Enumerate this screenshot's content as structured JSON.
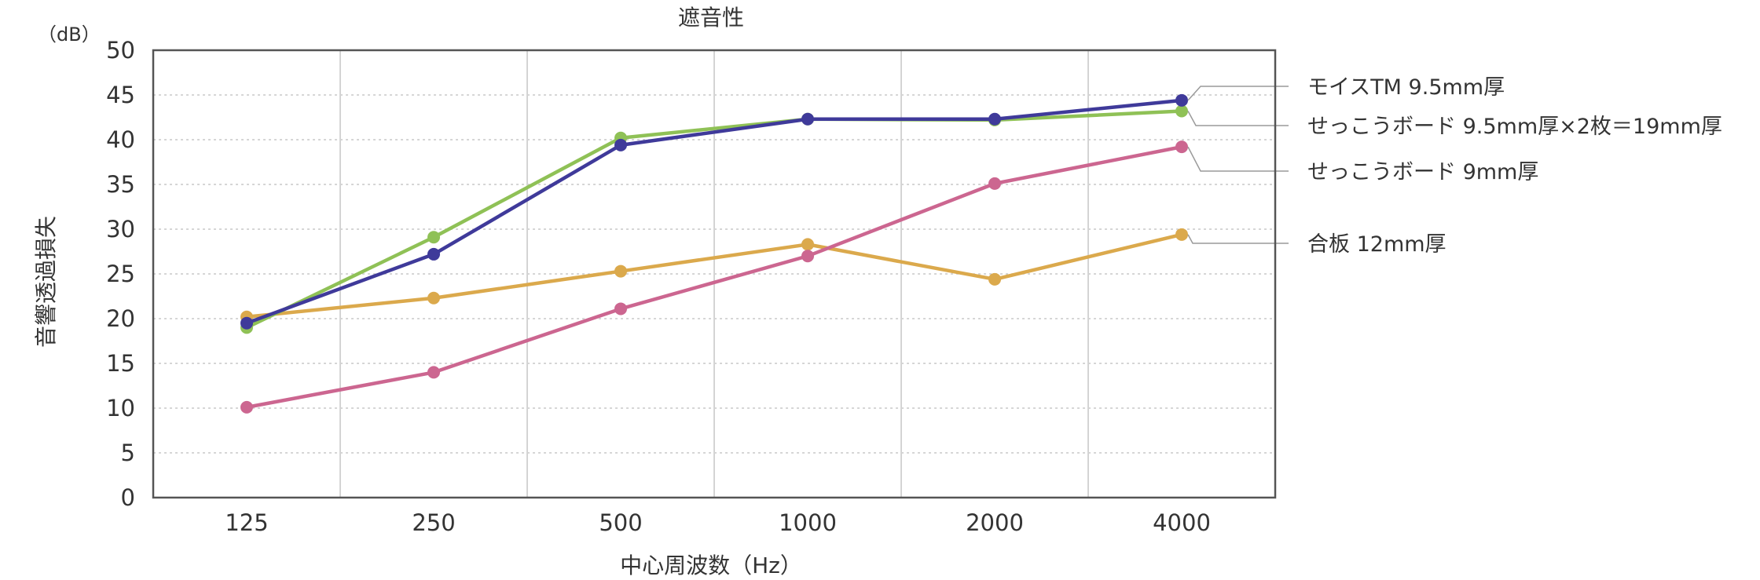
{
  "chart_data": {
    "type": "line",
    "title": "遮音性",
    "unit_label": "（dB）",
    "xlabel": "中心周波数（Hz）",
    "ylabel": "音響透過損失",
    "categories": [
      "125",
      "250",
      "500",
      "1000",
      "2000",
      "4000"
    ],
    "yticks": [
      "0",
      "5",
      "10",
      "15",
      "20",
      "25",
      "30",
      "35",
      "40",
      "45",
      "50"
    ],
    "ylim": [
      0,
      50
    ],
    "grid": "dotted horizontal, solid vertical",
    "legend_placement": "right, labels at line ends",
    "series": [
      {
        "name": "モイスTM 9.5mm厚",
        "color": "#3f3a9a",
        "values": [
          19.5,
          27.2,
          39.4,
          42.3,
          42.3,
          44.4
        ]
      },
      {
        "name": "せっこうボード 9.5mm厚×2枚＝19mm厚",
        "color": "#8fc156",
        "values": [
          19.0,
          29.1,
          40.2,
          42.3,
          42.2,
          43.2
        ]
      },
      {
        "name": "せっこうボード 9mm厚",
        "color": "#cc6690",
        "values": [
          10.1,
          14.0,
          21.1,
          27.0,
          35.1,
          39.2
        ]
      },
      {
        "name": "合板 12mm厚",
        "color": "#dba94c",
        "values": [
          20.2,
          22.3,
          25.3,
          28.3,
          24.4,
          29.4
        ]
      }
    ]
  }
}
